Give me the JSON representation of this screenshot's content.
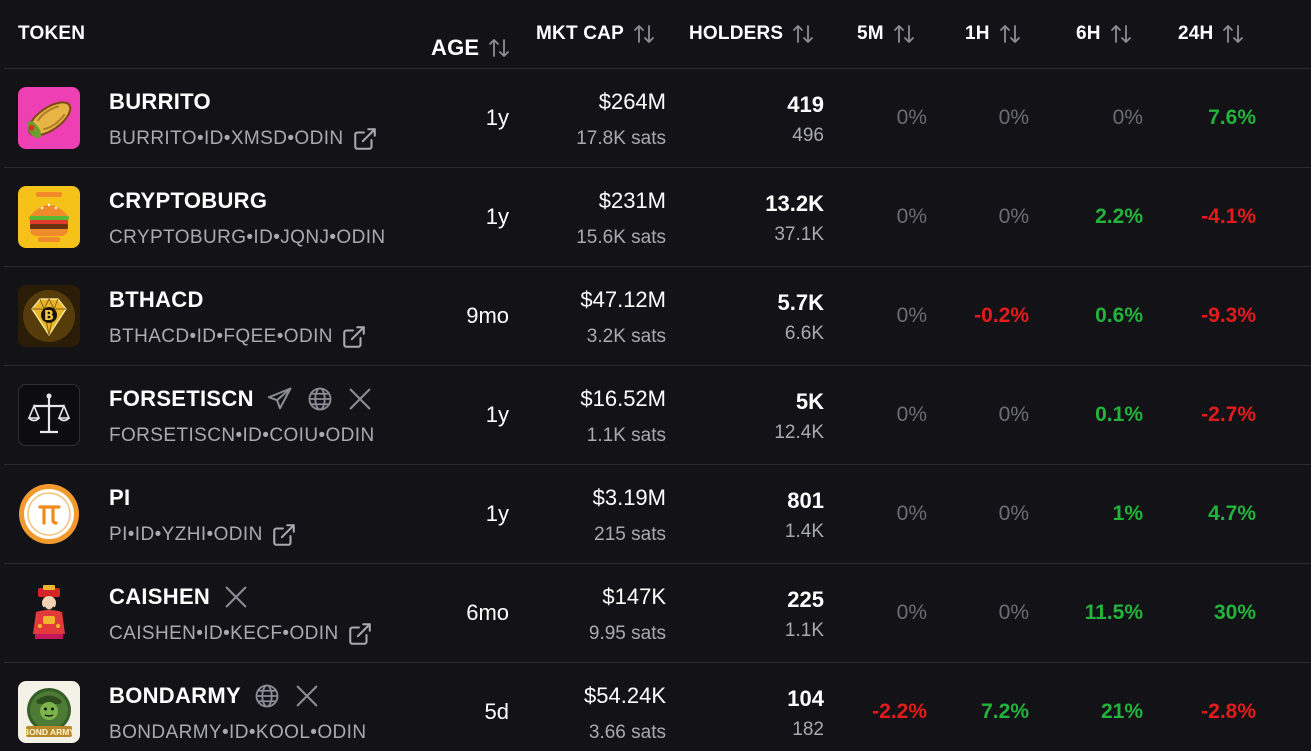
{
  "header": {
    "token": "TOKEN",
    "age": "AGE",
    "mkt_cap": "MKT CAP",
    "holders": "HOLDERS",
    "m5": "5M",
    "h1": "1H",
    "h6": "6H",
    "h24": "24H"
  },
  "colors": {
    "background": "#131317",
    "positive": "#22b33a",
    "negative": "#e31b1b",
    "neutral": "#6c6c76",
    "muted_text": "#a9a9b2"
  },
  "rows": [
    {
      "name": "BURRITO",
      "id": "BURRITO•ID•XMSD•ODIN",
      "icons": [
        "external-link-icon"
      ],
      "avatar": "burrito",
      "age": "1y",
      "mcap_usd": "$264M",
      "mcap_sats": "17.8K sats",
      "holders": "419",
      "holders_sub": "496",
      "m5": "0%",
      "m5_dir": "neutral",
      "h1": "0%",
      "h1_dir": "neutral",
      "h6": "0%",
      "h6_dir": "neutral",
      "h24": "7.6%",
      "h24_dir": "pos"
    },
    {
      "name": "CRYPTOBURG",
      "id": "CRYPTOBURG•ID•JQNJ•ODIN",
      "icons": [],
      "avatar": "burger",
      "age": "1y",
      "mcap_usd": "$231M",
      "mcap_sats": "15.6K sats",
      "holders": "13.2K",
      "holders_sub": "37.1K",
      "m5": "0%",
      "m5_dir": "neutral",
      "h1": "0%",
      "h1_dir": "neutral",
      "h6": "2.2%",
      "h6_dir": "pos",
      "h24": "-4.1%",
      "h24_dir": "neg"
    },
    {
      "name": "BTHACD",
      "id": "BTHACD•ID•FQEE•ODIN",
      "icons": [
        "external-link-icon"
      ],
      "avatar": "diamond",
      "age": "9mo",
      "mcap_usd": "$47.12M",
      "mcap_sats": "3.2K sats",
      "holders": "5.7K",
      "holders_sub": "6.6K",
      "m5": "0%",
      "m5_dir": "neutral",
      "h1": "-0.2%",
      "h1_dir": "neg",
      "h6": "0.6%",
      "h6_dir": "pos",
      "h24": "-9.3%",
      "h24_dir": "neg"
    },
    {
      "name": "FORSETISCN",
      "id": "FORSETISCN•ID•COIU•ODIN",
      "icons": [],
      "socials": [
        "telegram-icon",
        "globe-icon",
        "x-icon"
      ],
      "avatar": "scales",
      "age": "1y",
      "mcap_usd": "$16.52M",
      "mcap_sats": "1.1K sats",
      "holders": "5K",
      "holders_sub": "12.4K",
      "m5": "0%",
      "m5_dir": "neutral",
      "h1": "0%",
      "h1_dir": "neutral",
      "h6": "0.1%",
      "h6_dir": "pos",
      "h24": "-2.7%",
      "h24_dir": "neg"
    },
    {
      "name": "PI",
      "id": "PI•ID•YZHI•ODIN",
      "icons": [
        "external-link-icon"
      ],
      "avatar": "pi",
      "age": "1y",
      "mcap_usd": "$3.19M",
      "mcap_sats": "215 sats",
      "holders": "801",
      "holders_sub": "1.4K",
      "m5": "0%",
      "m5_dir": "neutral",
      "h1": "0%",
      "h1_dir": "neutral",
      "h6": "1%",
      "h6_dir": "pos",
      "h24": "4.7%",
      "h24_dir": "pos"
    },
    {
      "name": "CAISHEN",
      "id": "CAISHEN•ID•KECF•ODIN",
      "icons": [
        "external-link-icon"
      ],
      "socials": [
        "x-icon"
      ],
      "avatar": "caishen",
      "age": "6mo",
      "mcap_usd": "$147K",
      "mcap_sats": "9.95 sats",
      "holders": "225",
      "holders_sub": "1.1K",
      "m5": "0%",
      "m5_dir": "neutral",
      "h1": "0%",
      "h1_dir": "neutral",
      "h6": "11.5%",
      "h6_dir": "pos",
      "h24": "30%",
      "h24_dir": "pos"
    },
    {
      "name": "BONDARMY",
      "id": "BONDARMY•ID•KOOL•ODIN",
      "icons": [],
      "socials": [
        "globe-icon",
        "x-icon"
      ],
      "avatar": "bondarmy",
      "avatar_text": "BOND ARMY",
      "age": "5d",
      "mcap_usd": "$54.24K",
      "mcap_sats": "3.66 sats",
      "holders": "104",
      "holders_sub": "182",
      "m5": "-2.2%",
      "m5_dir": "neg",
      "h1": "7.2%",
      "h1_dir": "pos",
      "h6": "21%",
      "h6_dir": "pos",
      "h24": "-2.8%",
      "h24_dir": "neg"
    }
  ]
}
